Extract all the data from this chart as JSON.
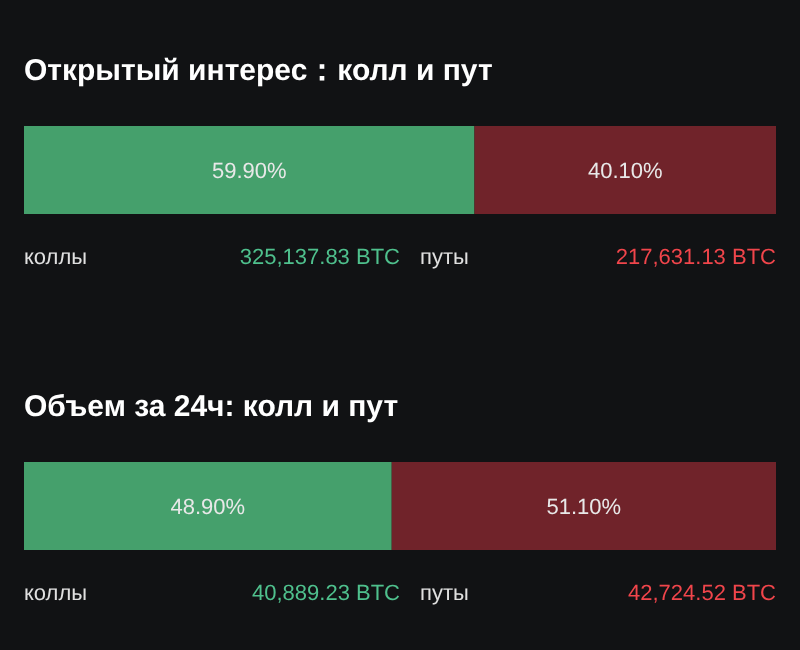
{
  "chart_data": [
    {
      "type": "bar",
      "title": "Открытый интерес：колл и пут",
      "orientation": "horizontal",
      "stacked": true,
      "categories": [
        null
      ],
      "tick_labels": false,
      "series": [
        {
          "name": "коллы",
          "color": "#45a06c",
          "values": [
            59.9
          ],
          "value_labels": [
            "59.90%"
          ]
        },
        {
          "name": "путы",
          "color": "#70232a",
          "values": [
            40.1
          ],
          "value_labels": [
            "40.10%"
          ]
        }
      ],
      "annotations": [
        "325,137.83 BTC",
        "217,631.13 BTC"
      ]
    },
    {
      "type": "bar",
      "title": "Объем за 24ч: колл и пут",
      "orientation": "horizontal",
      "stacked": true,
      "categories": [
        null
      ],
      "tick_labels": false,
      "series": [
        {
          "name": "коллы",
          "color": "#45a06c",
          "values": [
            48.9
          ],
          "value_labels": [
            "48.90%"
          ]
        },
        {
          "name": "путы",
          "color": "#70232a",
          "values": [
            51.1
          ],
          "value_labels": [
            "51.10%"
          ]
        }
      ],
      "annotations": [
        "40,889.23 BTC",
        "42,724.52 BTC"
      ]
    }
  ]
}
